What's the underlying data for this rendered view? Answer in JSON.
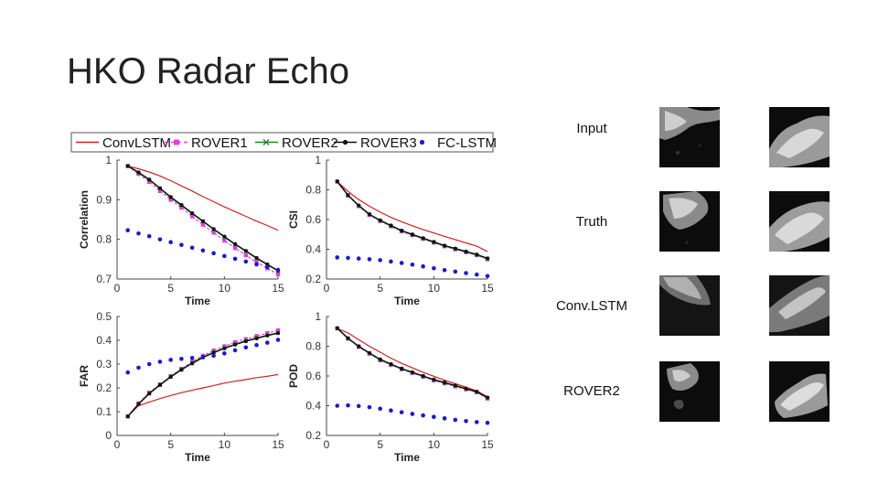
{
  "slide": {
    "title": "HKO Radar Echo"
  },
  "legend": {
    "items": [
      {
        "label": "ConvLSTM",
        "color": "#cc2222",
        "style": "line"
      },
      {
        "label": "ROVER1",
        "color": "#e040e0",
        "style": "dash-square"
      },
      {
        "label": "ROVER2",
        "color": "#228822",
        "style": "line-x"
      },
      {
        "label": "ROVER3",
        "color": "#111111",
        "style": "line-dot"
      },
      {
        "label": "FC-LSTM",
        "color": "#1a1acc",
        "style": "dots"
      }
    ]
  },
  "chart_data": [
    {
      "type": "line",
      "xlabel": "Time",
      "ylabel": "Correlation",
      "xlim": [
        0,
        15
      ],
      "ylim": [
        0.7,
        1.0
      ],
      "xticks": [
        0,
        5,
        10,
        15
      ],
      "yticks": [
        {
          "v": 0.7,
          "t": "0.7"
        },
        {
          "v": 0.8,
          "t": "0.8"
        },
        {
          "v": 0.9,
          "t": "0.9"
        },
        {
          "v": 1.0,
          "t": "1"
        }
      ],
      "x": [
        1,
        2,
        3,
        4,
        5,
        6,
        7,
        8,
        9,
        10,
        11,
        12,
        13,
        14,
        15
      ],
      "series": [
        {
          "name": "ConvLSTM",
          "values": [
            0.985,
            0.978,
            0.97,
            0.96,
            0.948,
            0.935,
            0.922,
            0.908,
            0.895,
            0.882,
            0.87,
            0.858,
            0.846,
            0.835,
            0.823
          ]
        },
        {
          "name": "ROVER1",
          "values": [
            0.985,
            0.965,
            0.945,
            0.922,
            0.9,
            0.88,
            0.858,
            0.837,
            0.817,
            0.797,
            0.778,
            0.76,
            0.743,
            0.727,
            0.712
          ]
        },
        {
          "name": "ROVER2",
          "values": [
            0.985,
            0.968,
            0.95,
            0.928,
            0.905,
            0.885,
            0.865,
            0.845,
            0.825,
            0.806,
            0.787,
            0.77,
            0.752,
            0.736,
            0.72
          ]
        },
        {
          "name": "ROVER3",
          "values": [
            0.985,
            0.969,
            0.951,
            0.929,
            0.907,
            0.887,
            0.866,
            0.846,
            0.826,
            0.807,
            0.788,
            0.771,
            0.753,
            0.737,
            0.721
          ]
        },
        {
          "name": "FC-LSTM",
          "values": [
            0.823,
            0.815,
            0.808,
            0.8,
            0.793,
            0.786,
            0.779,
            0.772,
            0.765,
            0.758,
            0.751,
            0.744,
            0.737,
            0.73,
            0.723
          ]
        }
      ]
    },
    {
      "type": "line",
      "xlabel": "Time",
      "ylabel": "CSI",
      "xlim": [
        0,
        15
      ],
      "ylim": [
        0.2,
        1.0
      ],
      "xticks": [
        0,
        5,
        10,
        15
      ],
      "yticks": [
        {
          "v": 0.2,
          "t": "0.2"
        },
        {
          "v": 0.4,
          "t": "0.4"
        },
        {
          "v": 0.6,
          "t": "0.6"
        },
        {
          "v": 0.8,
          "t": "0.8"
        },
        {
          "v": 1.0,
          "t": "1"
        }
      ],
      "x": [
        1,
        2,
        3,
        4,
        5,
        6,
        7,
        8,
        9,
        10,
        11,
        12,
        13,
        14,
        15
      ],
      "series": [
        {
          "name": "ConvLSTM",
          "values": [
            0.855,
            0.79,
            0.735,
            0.69,
            0.65,
            0.615,
            0.585,
            0.558,
            0.533,
            0.51,
            0.487,
            0.465,
            0.443,
            0.421,
            0.385
          ]
        },
        {
          "name": "ROVER1",
          "values": [
            0.855,
            0.76,
            0.69,
            0.63,
            0.59,
            0.555,
            0.52,
            0.495,
            0.47,
            0.445,
            0.42,
            0.4,
            0.38,
            0.36,
            0.333
          ]
        },
        {
          "name": "ROVER2",
          "values": [
            0.855,
            0.762,
            0.692,
            0.633,
            0.592,
            0.557,
            0.523,
            0.497,
            0.472,
            0.447,
            0.422,
            0.402,
            0.382,
            0.362,
            0.336
          ]
        },
        {
          "name": "ROVER3",
          "values": [
            0.857,
            0.765,
            0.695,
            0.636,
            0.595,
            0.56,
            0.526,
            0.5,
            0.475,
            0.45,
            0.425,
            0.405,
            0.385,
            0.365,
            0.339
          ]
        },
        {
          "name": "FC-LSTM",
          "values": [
            0.345,
            0.342,
            0.338,
            0.333,
            0.327,
            0.318,
            0.308,
            0.297,
            0.285,
            0.272,
            0.26,
            0.25,
            0.24,
            0.23,
            0.22
          ]
        }
      ]
    },
    {
      "type": "line",
      "xlabel": "Time",
      "ylabel": "FAR",
      "xlim": [
        0,
        15
      ],
      "ylim": [
        0,
        0.5
      ],
      "xticks": [
        0,
        5,
        10,
        15
      ],
      "yticks": [
        {
          "v": 0,
          "t": "0"
        },
        {
          "v": 0.1,
          "t": "0.1"
        },
        {
          "v": 0.2,
          "t": "0.2"
        },
        {
          "v": 0.3,
          "t": "0.3"
        },
        {
          "v": 0.4,
          "t": "0.4"
        },
        {
          "v": 0.5,
          "t": "0.5"
        }
      ],
      "x": [
        1,
        2,
        3,
        4,
        5,
        6,
        7,
        8,
        9,
        10,
        11,
        12,
        13,
        14,
        15
      ],
      "series": [
        {
          "name": "ConvLSTM",
          "values": [
            0.08,
            0.125,
            0.14,
            0.155,
            0.168,
            0.18,
            0.19,
            0.2,
            0.21,
            0.22,
            0.228,
            0.235,
            0.243,
            0.249,
            0.256
          ]
        },
        {
          "name": "ROVER1",
          "values": [
            0.08,
            0.135,
            0.18,
            0.215,
            0.25,
            0.28,
            0.31,
            0.335,
            0.357,
            0.375,
            0.392,
            0.405,
            0.418,
            0.43,
            0.442
          ]
        },
        {
          "name": "ROVER2",
          "values": [
            0.08,
            0.133,
            0.178,
            0.213,
            0.248,
            0.278,
            0.305,
            0.33,
            0.35,
            0.368,
            0.384,
            0.398,
            0.41,
            0.422,
            0.432
          ]
        },
        {
          "name": "ROVER3",
          "values": [
            0.08,
            0.132,
            0.176,
            0.212,
            0.246,
            0.276,
            0.303,
            0.328,
            0.348,
            0.366,
            0.382,
            0.396,
            0.408,
            0.42,
            0.43
          ]
        },
        {
          "name": "FC-LSTM",
          "values": [
            0.265,
            0.285,
            0.3,
            0.31,
            0.318,
            0.322,
            0.326,
            0.33,
            0.335,
            0.345,
            0.358,
            0.37,
            0.38,
            0.39,
            0.402
          ]
        }
      ]
    },
    {
      "type": "line",
      "xlabel": "Time",
      "ylabel": "POD",
      "xlim": [
        0,
        15
      ],
      "ylim": [
        0.2,
        1.0
      ],
      "xticks": [
        0,
        5,
        10,
        15
      ],
      "yticks": [
        {
          "v": 0.2,
          "t": "0.2"
        },
        {
          "v": 0.4,
          "t": "0.4"
        },
        {
          "v": 0.6,
          "t": "0.6"
        },
        {
          "v": 0.8,
          "t": "0.8"
        },
        {
          "v": 1.0,
          "t": "1"
        }
      ],
      "x": [
        1,
        2,
        3,
        4,
        5,
        6,
        7,
        8,
        9,
        10,
        11,
        12,
        13,
        14,
        15
      ],
      "series": [
        {
          "name": "ConvLSTM",
          "values": [
            0.92,
            0.89,
            0.845,
            0.8,
            0.76,
            0.72,
            0.685,
            0.655,
            0.625,
            0.598,
            0.572,
            0.548,
            0.525,
            0.5,
            0.46
          ]
        },
        {
          "name": "ROVER1",
          "values": [
            0.92,
            0.85,
            0.795,
            0.75,
            0.705,
            0.675,
            0.645,
            0.62,
            0.595,
            0.57,
            0.55,
            0.53,
            0.51,
            0.49,
            0.448
          ]
        },
        {
          "name": "ROVER2",
          "values": [
            0.92,
            0.852,
            0.798,
            0.752,
            0.708,
            0.678,
            0.648,
            0.622,
            0.598,
            0.573,
            0.553,
            0.533,
            0.512,
            0.492,
            0.452
          ]
        },
        {
          "name": "ROVER3",
          "values": [
            0.922,
            0.855,
            0.8,
            0.755,
            0.712,
            0.68,
            0.65,
            0.625,
            0.6,
            0.576,
            0.556,
            0.536,
            0.515,
            0.495,
            0.455
          ]
        },
        {
          "name": "FC-LSTM",
          "values": [
            0.4,
            0.402,
            0.398,
            0.39,
            0.38,
            0.368,
            0.356,
            0.345,
            0.335,
            0.325,
            0.315,
            0.305,
            0.297,
            0.29,
            0.285
          ]
        }
      ]
    }
  ],
  "examples": {
    "rows": [
      {
        "label": "Input"
      },
      {
        "label": "Truth"
      },
      {
        "label": "Conv.LSTM"
      },
      {
        "label": "ROVER2"
      }
    ]
  }
}
